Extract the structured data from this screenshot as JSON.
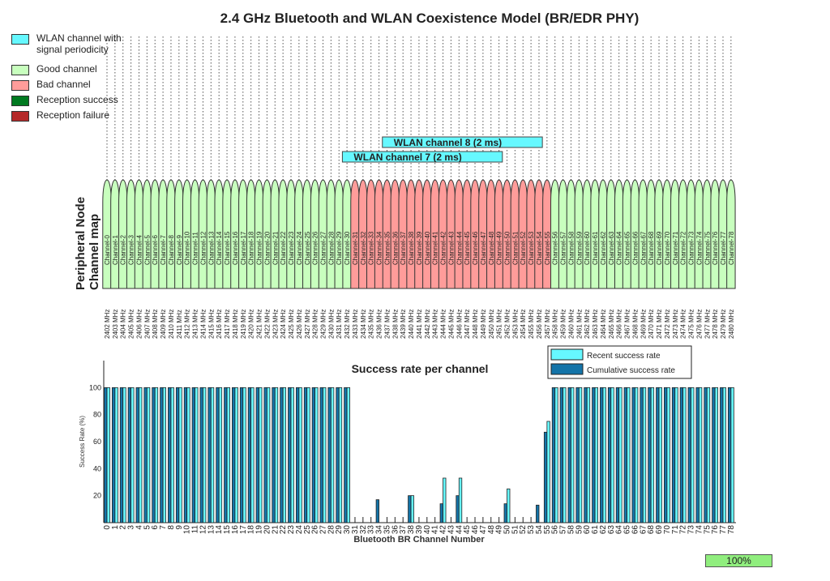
{
  "title": "2.4 GHz Bluetooth and WLAN Coexistence Model (BR/EDR PHY)",
  "legend": [
    {
      "label": "WLAN channel with signal periodicity",
      "color": "#66f8ff"
    },
    {
      "label": "Good channel",
      "color": "#c8ffbe"
    },
    {
      "label": "Bad channel",
      "color": "#ff9c9a"
    },
    {
      "label": "Reception success",
      "color": "#007a20"
    },
    {
      "label": "Reception failure",
      "color": "#b52a2a"
    }
  ],
  "channel_map": {
    "ylabel": "Peripheral Node Channel map",
    "channel_prefix": "Channel-",
    "freq_start_mhz": 2402,
    "freq_unit": "MHz",
    "num_channels": 79,
    "bad_channels": [
      31,
      32,
      33,
      34,
      35,
      36,
      37,
      38,
      39,
      40,
      41,
      42,
      43,
      44,
      45,
      46,
      47,
      48,
      49,
      50,
      51,
      52,
      53,
      54,
      55
    ],
    "good_color": "#c8ffbe",
    "bad_color": "#ff9c9a",
    "wlan": [
      {
        "label": "WLAN channel 8 (2 ms)",
        "start_channel": 35,
        "end_channel": 55
      },
      {
        "label": "WLAN channel 7 (2 ms)",
        "start_channel": 30,
        "end_channel": 50
      }
    ]
  },
  "chart_data": {
    "type": "bar",
    "title": "Success rate per channel",
    "xlabel": "Bluetooth BR Channel Number",
    "ylabel": "Success Rate (%)",
    "ylim": [
      0,
      120
    ],
    "yticks": [
      20,
      40,
      60,
      80,
      100
    ],
    "legend_placement": "top-right",
    "categories": [
      0,
      1,
      2,
      3,
      4,
      5,
      6,
      7,
      8,
      9,
      10,
      11,
      12,
      13,
      14,
      15,
      16,
      17,
      18,
      19,
      20,
      21,
      22,
      23,
      24,
      25,
      26,
      27,
      28,
      29,
      30,
      31,
      32,
      33,
      34,
      35,
      36,
      37,
      38,
      39,
      40,
      41,
      42,
      43,
      44,
      45,
      46,
      47,
      48,
      49,
      50,
      51,
      52,
      53,
      54,
      55,
      56,
      57,
      58,
      59,
      60,
      61,
      62,
      63,
      64,
      65,
      66,
      67,
      68,
      69,
      70,
      71,
      72,
      73,
      74,
      75,
      76,
      77,
      78
    ],
    "series": [
      {
        "name": "Recent success rate",
        "color": "#66f8ff",
        "values": [
          100,
          100,
          100,
          100,
          100,
          100,
          100,
          100,
          100,
          100,
          100,
          100,
          100,
          100,
          100,
          100,
          100,
          100,
          100,
          100,
          100,
          100,
          100,
          100,
          100,
          100,
          100,
          100,
          100,
          100,
          100,
          0,
          0,
          0,
          0,
          0,
          0,
          0,
          20,
          0,
          0,
          0,
          33,
          0,
          33,
          0,
          0,
          0,
          0,
          0,
          25,
          0,
          0,
          0,
          0,
          75,
          100,
          100,
          100,
          100,
          100,
          100,
          100,
          100,
          100,
          100,
          100,
          100,
          100,
          100,
          100,
          100,
          100,
          100,
          100,
          100,
          100,
          100,
          100
        ]
      },
      {
        "name": "Cumulative success rate",
        "color": "#1474a8",
        "values": [
          100,
          100,
          100,
          100,
          100,
          100,
          100,
          100,
          100,
          100,
          100,
          100,
          100,
          100,
          100,
          100,
          100,
          100,
          100,
          100,
          100,
          100,
          100,
          100,
          100,
          100,
          100,
          100,
          100,
          100,
          100,
          0,
          0,
          0,
          17,
          0,
          0,
          0,
          20,
          0,
          0,
          0,
          14,
          0,
          20,
          0,
          0,
          0,
          0,
          0,
          14,
          0,
          0,
          0,
          13,
          67,
          100,
          100,
          100,
          100,
          100,
          100,
          100,
          100,
          100,
          100,
          100,
          100,
          100,
          100,
          100,
          100,
          100,
          100,
          100,
          100,
          100,
          100,
          100
        ]
      }
    ]
  },
  "progress": {
    "label": "100%",
    "value": 100
  }
}
